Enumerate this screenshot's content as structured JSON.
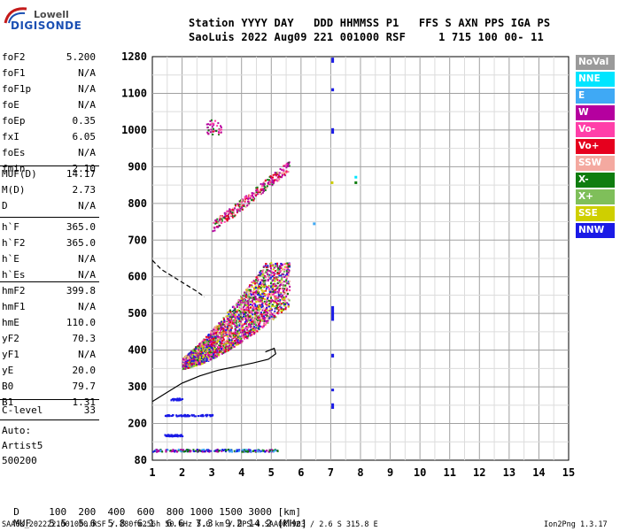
{
  "logo": {
    "line1": "Lowell",
    "line2": "DIGISONDE"
  },
  "header": {
    "line1": "Station YYYY DAY   DDD HHMMSS P1   FFS S AXN PPS IGA PS",
    "line2": "SaoLuis 2022 Aug09 221 001000 RSF     1 715 100 00- 11"
  },
  "params_group1": [
    {
      "name": "foF2",
      "value": "5.200"
    },
    {
      "name": "foF1",
      "value": "N/A"
    },
    {
      "name": "foF1p",
      "value": "N/A"
    },
    {
      "name": "foE",
      "value": "N/A"
    },
    {
      "name": "foEp",
      "value": "0.35"
    },
    {
      "name": "fxI",
      "value": "6.05"
    },
    {
      "name": "foEs",
      "value": "N/A"
    },
    {
      "name": "fmin",
      "value": "2.10"
    }
  ],
  "params_group2": [
    {
      "name": "MUF(D)",
      "value": "14.17"
    },
    {
      "name": "M(D)",
      "value": "2.73"
    },
    {
      "name": "D",
      "value": "N/A"
    }
  ],
  "params_group3": [
    {
      "name": "h`F",
      "value": "365.0"
    },
    {
      "name": "h`F2",
      "value": "365.0"
    },
    {
      "name": "h`E",
      "value": "N/A"
    },
    {
      "name": "h`Es",
      "value": "N/A"
    }
  ],
  "params_group4": [
    {
      "name": "hmF2",
      "value": "399.8"
    },
    {
      "name": "hmF1",
      "value": "N/A"
    },
    {
      "name": "hmE",
      "value": "110.0"
    },
    {
      "name": "yF2",
      "value": "70.3"
    },
    {
      "name": "yF1",
      "value": "N/A"
    },
    {
      "name": "yE",
      "value": "20.0"
    },
    {
      "name": "B0",
      "value": "79.7"
    },
    {
      "name": "B1",
      "value": "1.31"
    }
  ],
  "params_group5": [
    {
      "name": "C-level",
      "value": "33"
    }
  ],
  "auto": {
    "line1": "Auto:",
    "line2": "Artist5",
    "line3": "500200"
  },
  "distance_row": {
    "label": "D",
    "values": "100  200  400  600  800 1000 1500 3000 [km]"
  },
  "muf_row": {
    "label": "MUF",
    "values": "5.5  5.6  5.8  6.1  6.6  7.3  9.2 14.2 [MHz]"
  },
  "footer_left": "SAA0K_2022221001000.RSF / 280fx256h 50 kHz 5.0 km / DPS-4 SAA0K 903 / 2.6 S 315.8 E",
  "footer_right": "Ion2Png 1.3.17",
  "legend": [
    {
      "label": "NoVal",
      "color": "#9a9a9a"
    },
    {
      "label": "NNE",
      "color": "#00e5ff"
    },
    {
      "label": "E",
      "color": "#3fa9f5"
    },
    {
      "label": "W",
      "color": "#b5009f"
    },
    {
      "label": "Vo-",
      "color": "#ff3fa9"
    },
    {
      "label": "Vo+",
      "color": "#e6001e"
    },
    {
      "label": "SSW",
      "color": "#f4a9a0"
    },
    {
      "label": "X-",
      "color": "#0f7d0f"
    },
    {
      "label": "X+",
      "color": "#7fbf5a"
    },
    {
      "label": "SSE",
      "color": "#cfcf00"
    },
    {
      "label": "NNW",
      "color": "#1a1ae6"
    }
  ],
  "chart_data": {
    "type": "scatter",
    "x_ticks": [
      "1",
      "2",
      "3",
      "4",
      "5",
      "6",
      "7",
      "8",
      "9",
      "10",
      "11",
      "12",
      "13",
      "14",
      "15"
    ],
    "y_ticks": [
      "80",
      "200",
      "300",
      "400",
      "500",
      "600",
      "700",
      "800",
      "900",
      "1000",
      "1100",
      "1280"
    ],
    "xlim": [
      1,
      15
    ],
    "ylim": [
      80,
      1280
    ],
    "grid": true,
    "profile_curve": {
      "x": [
        1.0,
        1.5,
        2.0,
        2.6,
        3.2,
        3.8,
        4.4,
        4.9,
        5.15,
        5.1,
        4.8
      ],
      "y": [
        260,
        285,
        310,
        330,
        345,
        355,
        365,
        375,
        390,
        405,
        395
      ]
    },
    "dashed_curve": {
      "x": [
        1.0,
        1.3,
        1.7,
        2.1,
        2.5,
        2.75
      ],
      "y": [
        645,
        620,
        600,
        580,
        560,
        545
      ]
    },
    "vertical_echo_x": 7.05
  }
}
